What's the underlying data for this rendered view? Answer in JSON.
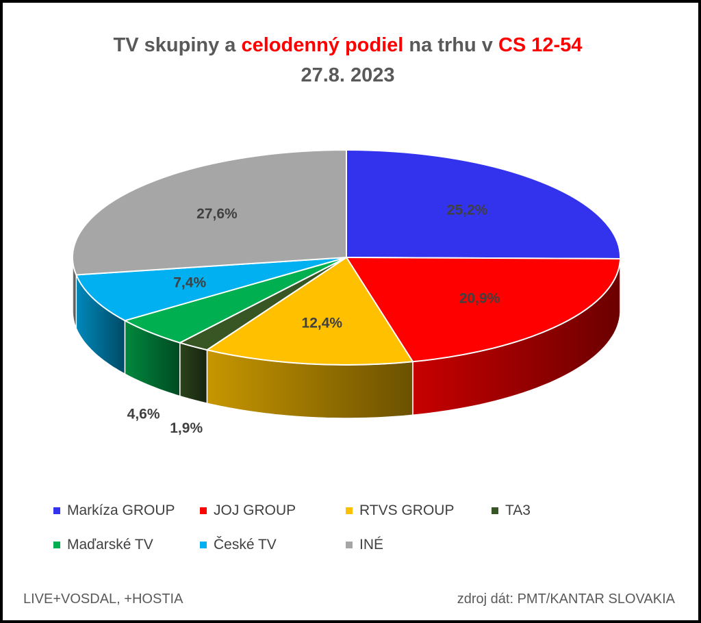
{
  "title": {
    "line1_part1": "TV skupiny a ",
    "line1_highlight1": "celodenný podiel",
    "line1_part2": " na trhu v ",
    "line1_highlight2": "CS 12-54",
    "line2": "27.8. 2023"
  },
  "chart_data": {
    "type": "pie",
    "style": "3d",
    "series": [
      {
        "name": "Markíza GROUP",
        "value": 25.2,
        "label": "25,2%",
        "color": "#3333ee"
      },
      {
        "name": "JOJ GROUP",
        "value": 20.9,
        "label": "20,9%",
        "color": "#ff0000"
      },
      {
        "name": "RTVS GROUP",
        "value": 12.4,
        "label": "12,4%",
        "color": "#ffc000"
      },
      {
        "name": "TA3",
        "value": 1.9,
        "label": "1,9%",
        "color": "#375623"
      },
      {
        "name": "Maďarské  TV",
        "value": 4.6,
        "label": "4,6%",
        "color": "#00b050"
      },
      {
        "name": "České  TV",
        "value": 7.4,
        "label": "7,4%",
        "color": "#00b0f0"
      },
      {
        "name": "INÉ",
        "value": 27.6,
        "label": "27,6%",
        "color": "#a6a6a6"
      }
    ],
    "legend_position": "bottom"
  },
  "footer": {
    "left": "LIVE+VOSDAL, +HOSTIA",
    "right": "zdroj dát: PMT/KANTAR SLOVAKIA"
  }
}
